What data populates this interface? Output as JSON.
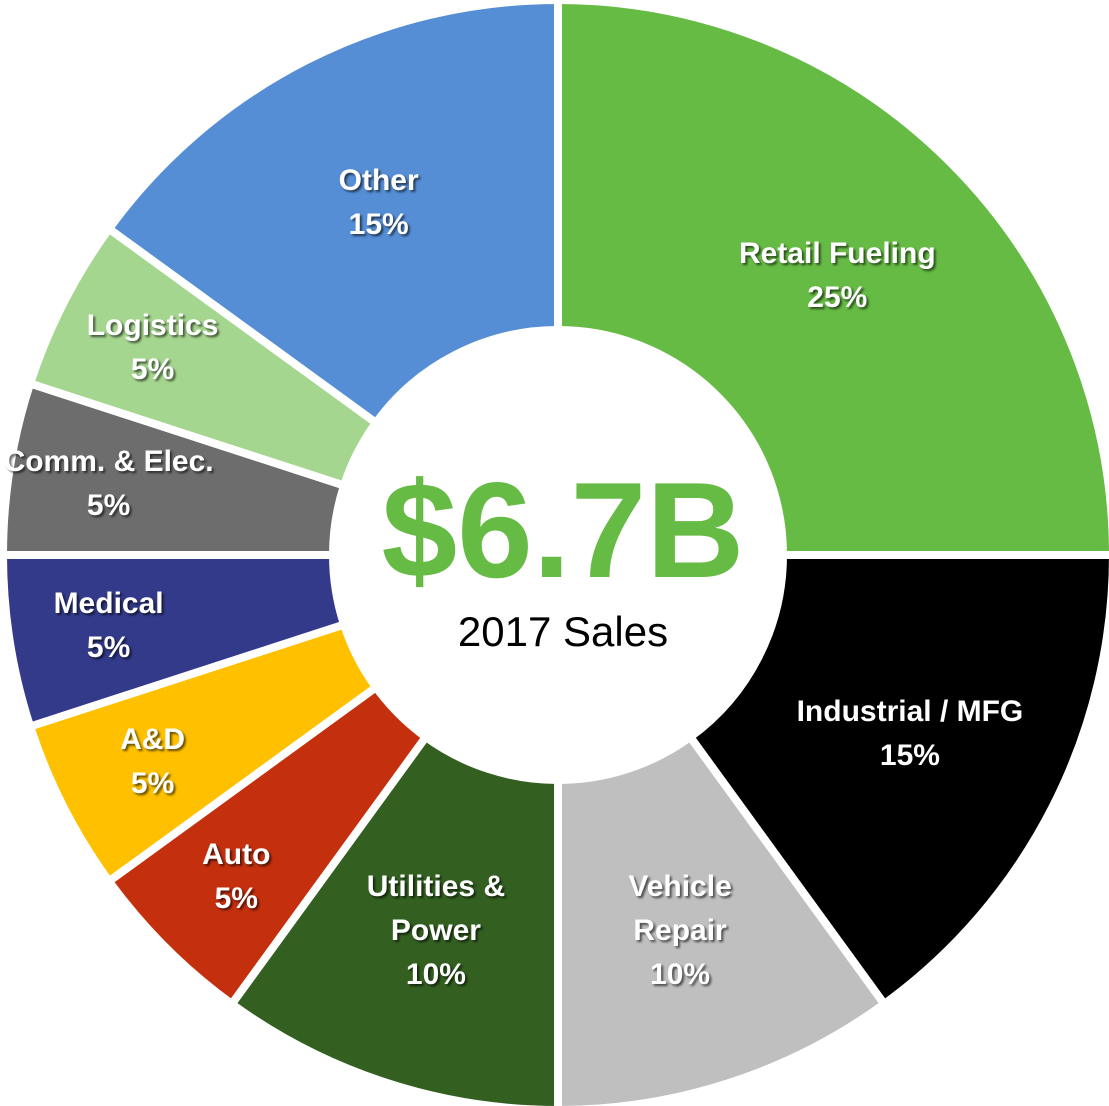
{
  "chart_data": {
    "type": "donut",
    "center_label": "$6.7B",
    "center_sublabel": "2017 Sales",
    "categories": [
      "Retail Fueling",
      "Industrial / MFG",
      "Vehicle Repair",
      "Utilities & Power",
      "Auto",
      "A&D",
      "Medical",
      "Comm. & Elec.",
      "Logistics",
      "Other"
    ],
    "values": [
      25,
      15,
      10,
      10,
      5,
      5,
      5,
      5,
      5,
      15
    ],
    "value_labels": [
      "25%",
      "15%",
      "10%",
      "10%",
      "5%",
      "5%",
      "5%",
      "5%",
      "5%",
      "15%"
    ],
    "colors": [
      "#66bb44",
      "#000000",
      "#bfbfbf",
      "#336021",
      "#c4300e",
      "#ffc000",
      "#333a8a",
      "#6d6d6d",
      "#a5d68f",
      "#558ed5"
    ]
  }
}
